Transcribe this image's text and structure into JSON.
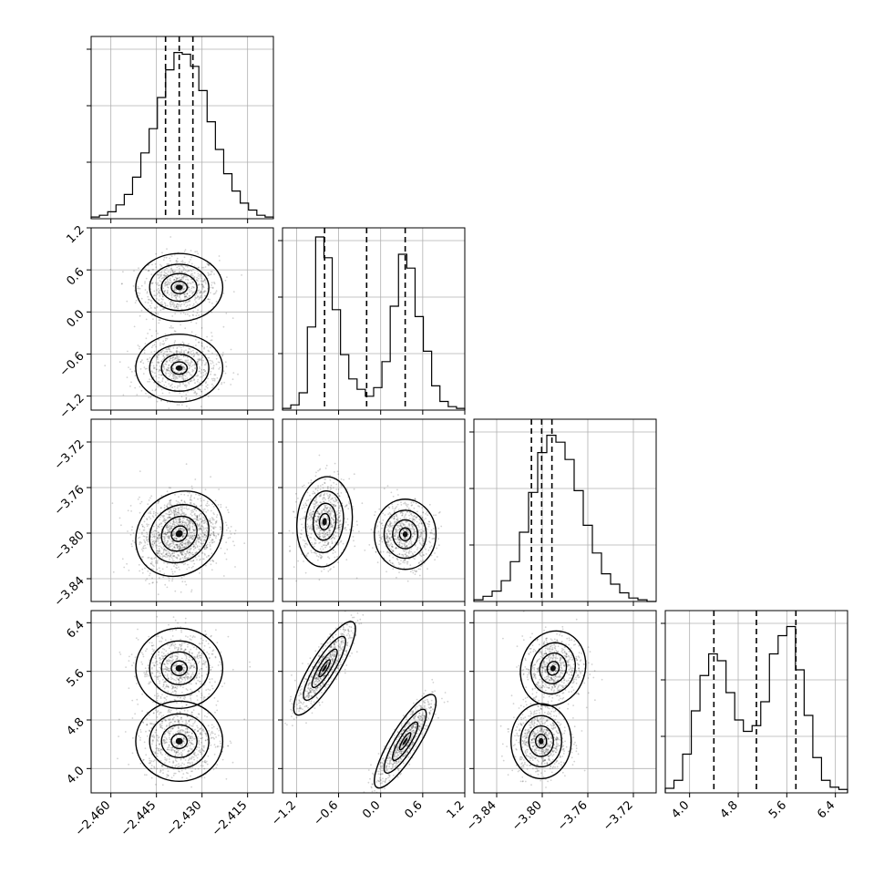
{
  "chart_data": {
    "type": "corner",
    "title": "",
    "grid": true,
    "parameters": [
      {
        "ticks": [
          -2.46,
          -2.445,
          -2.43,
          -2.415
        ],
        "tick_labels": [
          "−2.460",
          "−2.445",
          "−2.430",
          "−2.415"
        ],
        "range": [
          -2.4665,
          -2.4065
        ]
      },
      {
        "ticks": [
          -1.2,
          -0.6,
          0.0,
          0.6,
          1.2
        ],
        "tick_labels": [
          "−1.2",
          "−0.6",
          "0.0",
          "0.6",
          "1.2"
        ],
        "range": [
          -1.4,
          1.2
        ]
      },
      {
        "ticks": [
          -3.84,
          -3.8,
          -3.76,
          -3.72
        ],
        "tick_labels": [
          "−3.84",
          "−3.80",
          "−3.76",
          "−3.72"
        ],
        "range": [
          -3.86,
          -3.7
        ]
      },
      {
        "ticks": [
          4.0,
          4.8,
          5.6,
          6.4
        ],
        "tick_labels": [
          "4.0",
          "4.8",
          "5.6",
          "6.4"
        ],
        "range": [
          3.6,
          6.6
        ]
      }
    ],
    "histograms": [
      {
        "quantiles": [
          -2.442,
          -2.4375,
          -2.433
        ],
        "counts": [
          1,
          2,
          4,
          8,
          14,
          24,
          38,
          52,
          70,
          86,
          96,
          95,
          88,
          74,
          56,
          40,
          26,
          16,
          9,
          5,
          2,
          1
        ],
        "max": 100
      },
      {
        "quantiles": [
          -0.8,
          -0.2,
          0.35
        ],
        "counts": [
          1,
          3,
          10,
          48,
          100,
          88,
          58,
          32,
          18,
          12,
          8,
          13,
          28,
          60,
          90,
          82,
          54,
          34,
          14,
          5,
          2,
          1
        ],
        "max": 100
      },
      {
        "quantiles": [
          -3.8095,
          -3.8005,
          -3.7915
        ],
        "counts": [
          1,
          3,
          6,
          12,
          23,
          40,
          63,
          86,
          96,
          92,
          82,
          64,
          44,
          28,
          16,
          10,
          5,
          2,
          1,
          0
        ],
        "max": 100
      },
      {
        "quantiles": [
          4.4,
          5.1,
          5.75
        ],
        "counts": [
          4,
          11,
          34,
          72,
          103,
          122,
          116,
          88,
          64,
          54,
          59,
          80,
          122,
          138,
          146,
          108,
          68,
          31,
          11,
          5,
          3
        ],
        "max": 152
      }
    ],
    "scatter": [
      {
        "x_param": 0,
        "y_param": 1,
        "modes": [
          {
            "cx": -2.4375,
            "cy": 0.35,
            "sx": 0.0065,
            "sy": 0.22,
            "r": 0,
            "w": 0.5
          },
          {
            "cx": -2.4375,
            "cy": -0.8,
            "sx": 0.0065,
            "sy": 0.22,
            "r": 0,
            "w": 0.5
          }
        ]
      },
      {
        "x_param": 0,
        "y_param": 2,
        "modes": [
          {
            "cx": -2.4375,
            "cy": -3.8005,
            "sx": 0.0065,
            "sy": 0.017,
            "r": 0.15,
            "w": 1.0
          }
        ]
      },
      {
        "x_param": 1,
        "y_param": 2,
        "modes": [
          {
            "cx": -0.8,
            "cy": -3.79,
            "sx": 0.18,
            "sy": 0.018,
            "r": 0.1,
            "w": 0.5
          },
          {
            "cx": 0.35,
            "cy": -3.801,
            "sx": 0.2,
            "sy": 0.014,
            "r": 0.0,
            "w": 0.5
          }
        ]
      },
      {
        "x_param": 0,
        "y_param": 3,
        "modes": [
          {
            "cx": -2.4375,
            "cy": 5.65,
            "sx": 0.0065,
            "sy": 0.3,
            "r": 0,
            "w": 0.5
          },
          {
            "cx": -2.4375,
            "cy": 4.45,
            "sx": 0.0065,
            "sy": 0.3,
            "r": 0,
            "w": 0.5
          }
        ]
      },
      {
        "x_param": 1,
        "y_param": 3,
        "modes": [
          {
            "cx": -0.8,
            "cy": 5.65,
            "sx": 0.2,
            "sy": 0.35,
            "r": 0.85,
            "w": 0.5
          },
          {
            "cx": 0.35,
            "cy": 4.45,
            "sx": 0.2,
            "sy": 0.35,
            "r": 0.85,
            "w": 0.5
          }
        ]
      },
      {
        "x_param": 2,
        "y_param": 3,
        "modes": [
          {
            "cx": -3.7905,
            "cy": 5.65,
            "sx": 0.013,
            "sy": 0.28,
            "r": 0.1,
            "w": 0.5
          },
          {
            "cx": -3.801,
            "cy": 4.45,
            "sx": 0.012,
            "sy": 0.28,
            "r": 0,
            "w": 0.5
          }
        ]
      }
    ]
  }
}
